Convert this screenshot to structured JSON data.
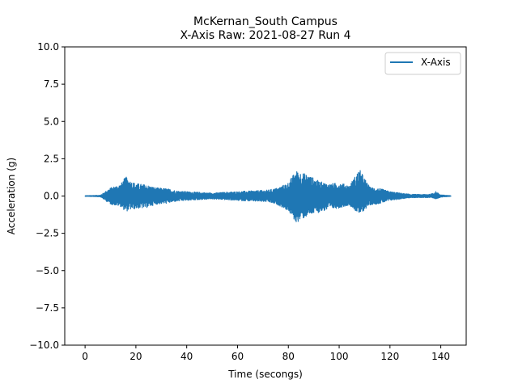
{
  "chart_data": {
    "type": "line",
    "title": "McKernan_South Campus",
    "subtitle": "X-Axis Raw: 2021-08-27 Run 4",
    "xlabel": "Time (secongs)",
    "ylabel": "Acceleration (g)",
    "xlim": [
      -8,
      150
    ],
    "ylim": [
      -10,
      10
    ],
    "x_ticks": [
      0,
      20,
      40,
      60,
      80,
      100,
      120,
      140
    ],
    "x_tick_labels": [
      "0",
      "20",
      "40",
      "60",
      "80",
      "100",
      "120",
      "140"
    ],
    "y_ticks": [
      -10,
      -7.5,
      -5,
      -2.5,
      0,
      2.5,
      5,
      7.5,
      10
    ],
    "y_tick_labels": [
      "−10.0",
      "−7.5",
      "−5.0",
      "−2.5",
      "0.0",
      "2.5",
      "5.0",
      "7.5",
      "10.0"
    ],
    "grid": false,
    "legend_position": "top-right",
    "series": [
      {
        "name": "X-Axis",
        "color": "#1f77b4",
        "x_range": [
          0,
          144
        ],
        "envelope": {
          "t": [
            0,
            6,
            8,
            10,
            14,
            16,
            18,
            20,
            24,
            28,
            32,
            36,
            40,
            50,
            60,
            66,
            72,
            76,
            80,
            83,
            85,
            88,
            92,
            96,
            100,
            104,
            108,
            112,
            116,
            120,
            124,
            128,
            132,
            136,
            138,
            140,
            144
          ],
          "max": [
            0.02,
            0.05,
            0.3,
            0.55,
            0.8,
            1.3,
            1.0,
            0.85,
            0.75,
            0.55,
            0.5,
            0.35,
            0.3,
            0.2,
            0.3,
            0.35,
            0.4,
            0.55,
            0.9,
            1.7,
            1.6,
            1.4,
            1.0,
            0.8,
            0.9,
            0.7,
            1.8,
            0.6,
            0.5,
            0.3,
            0.2,
            0.12,
            0.1,
            0.12,
            0.3,
            0.08,
            0.02
          ],
          "min": [
            -0.02,
            -0.05,
            -0.3,
            -0.55,
            -0.7,
            -1.05,
            -0.9,
            -0.85,
            -0.8,
            -0.55,
            -0.5,
            -0.35,
            -0.3,
            -0.2,
            -0.3,
            -0.35,
            -0.4,
            -0.6,
            -1.0,
            -1.8,
            -1.6,
            -1.3,
            -1.1,
            -0.9,
            -0.8,
            -0.6,
            -1.25,
            -0.6,
            -0.5,
            -0.3,
            -0.2,
            -0.12,
            -0.1,
            -0.12,
            -0.2,
            -0.08,
            -0.02
          ]
        }
      }
    ]
  }
}
